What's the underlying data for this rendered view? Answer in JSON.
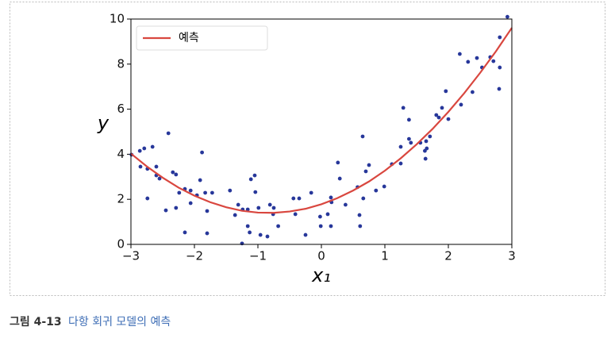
{
  "chart_data": {
    "type": "scatter",
    "xlabel": "x₁",
    "ylabel": "y",
    "xlim": [
      -3,
      3
    ],
    "ylim": [
      0,
      10
    ],
    "xticks": [
      {
        "value": -3,
        "label": "−3"
      },
      {
        "value": -2,
        "label": "−2"
      },
      {
        "value": -1,
        "label": "−1"
      },
      0,
      1,
      2,
      3
    ],
    "yticks": [
      0,
      2,
      4,
      6,
      8,
      10
    ],
    "legend": "upper left",
    "series": [
      {
        "style": "markers",
        "color": "#27379a",
        "x": [
          -2.99,
          -2.86,
          -2.79,
          -2.85,
          -2.74,
          -2.66,
          -2.6,
          -2.6,
          -2.55,
          -2.74,
          -2.41,
          -2.34,
          -2.29,
          -2.45,
          -2.29,
          -2.24,
          -2.15,
          -2.06,
          -2.06,
          -2.15,
          -1.96,
          -1.91,
          -1.88,
          -1.83,
          -1.72,
          -1.8,
          -1.8,
          -1.44,
          -1.36,
          -1.31,
          -1.24,
          -1.16,
          -1.16,
          -1.13,
          -1.25,
          -1.11,
          -1.05,
          -1.04,
          -0.99,
          -0.96,
          -0.85,
          -0.81,
          -0.76,
          -0.75,
          -0.68,
          -0.44,
          -0.35,
          -0.41,
          -0.25,
          -0.16,
          -0.02,
          -0.01,
          0.1,
          0.15,
          0.16,
          0.15,
          0.26,
          0.29,
          0.38,
          0.57,
          0.6,
          0.61,
          0.66,
          0.65,
          0.7,
          0.75,
          0.86,
          0.99,
          1.11,
          1.25,
          1.25,
          1.29,
          1.38,
          1.38,
          1.41,
          1.56,
          1.63,
          1.65,
          1.66,
          1.64,
          1.71,
          1.81,
          1.85,
          1.9,
          1.96,
          2.0,
          2.18,
          2.2,
          2.31,
          2.38,
          2.45,
          2.53,
          2.66,
          2.71,
          2.8,
          2.81,
          2.81,
          2.93
        ],
        "values": [
          3.98,
          4.15,
          4.26,
          3.45,
          3.35,
          4.33,
          3.45,
          3.06,
          2.92,
          2.04,
          4.93,
          3.2,
          3.1,
          1.51,
          1.62,
          2.29,
          2.46,
          2.39,
          1.83,
          0.53,
          2.18,
          2.85,
          4.08,
          2.29,
          2.29,
          1.48,
          0.49,
          2.39,
          1.3,
          1.76,
          1.55,
          1.55,
          0.81,
          0.53,
          0.04,
          2.89,
          3.06,
          2.32,
          1.62,
          0.42,
          0.35,
          1.76,
          1.34,
          1.62,
          0.81,
          2.04,
          2.04,
          1.34,
          0.42,
          2.29,
          1.23,
          0.81,
          1.34,
          2.08,
          1.87,
          0.81,
          3.63,
          2.92,
          1.76,
          2.54,
          1.3,
          0.81,
          2.04,
          4.79,
          3.24,
          3.52,
          2.39,
          2.57,
          3.56,
          3.59,
          4.33,
          6.06,
          5.53,
          4.68,
          4.51,
          4.51,
          4.15,
          4.58,
          4.26,
          3.8,
          4.79,
          5.74,
          5.63,
          6.06,
          6.8,
          5.56,
          8.45,
          6.2,
          8.1,
          6.76,
          8.27,
          7.85,
          8.31,
          8.13,
          6.9,
          7.85,
          9.19,
          10.1
        ]
      },
      {
        "style": "line",
        "name": "예측",
        "color": "#d9473f",
        "x": [
          -3,
          -2.75,
          -2.5,
          -2.25,
          -2,
          -1.75,
          -1.5,
          -1.25,
          -1,
          -0.75,
          -0.5,
          -0.25,
          0,
          0.25,
          0.5,
          0.75,
          1,
          1.25,
          1.5,
          1.75,
          2,
          2.25,
          2.5,
          2.75,
          3
        ],
        "values": [
          4.03,
          3.46,
          2.96,
          2.52,
          2.16,
          1.87,
          1.65,
          1.49,
          1.41,
          1.4,
          1.46,
          1.58,
          1.78,
          2.05,
          2.39,
          2.79,
          3.27,
          3.82,
          4.44,
          5.12,
          5.88,
          6.71,
          7.61,
          8.57,
          9.61
        ]
      }
    ]
  },
  "caption": {
    "label": "그림 4-13",
    "text": "다항 회귀 모델의 예측"
  }
}
